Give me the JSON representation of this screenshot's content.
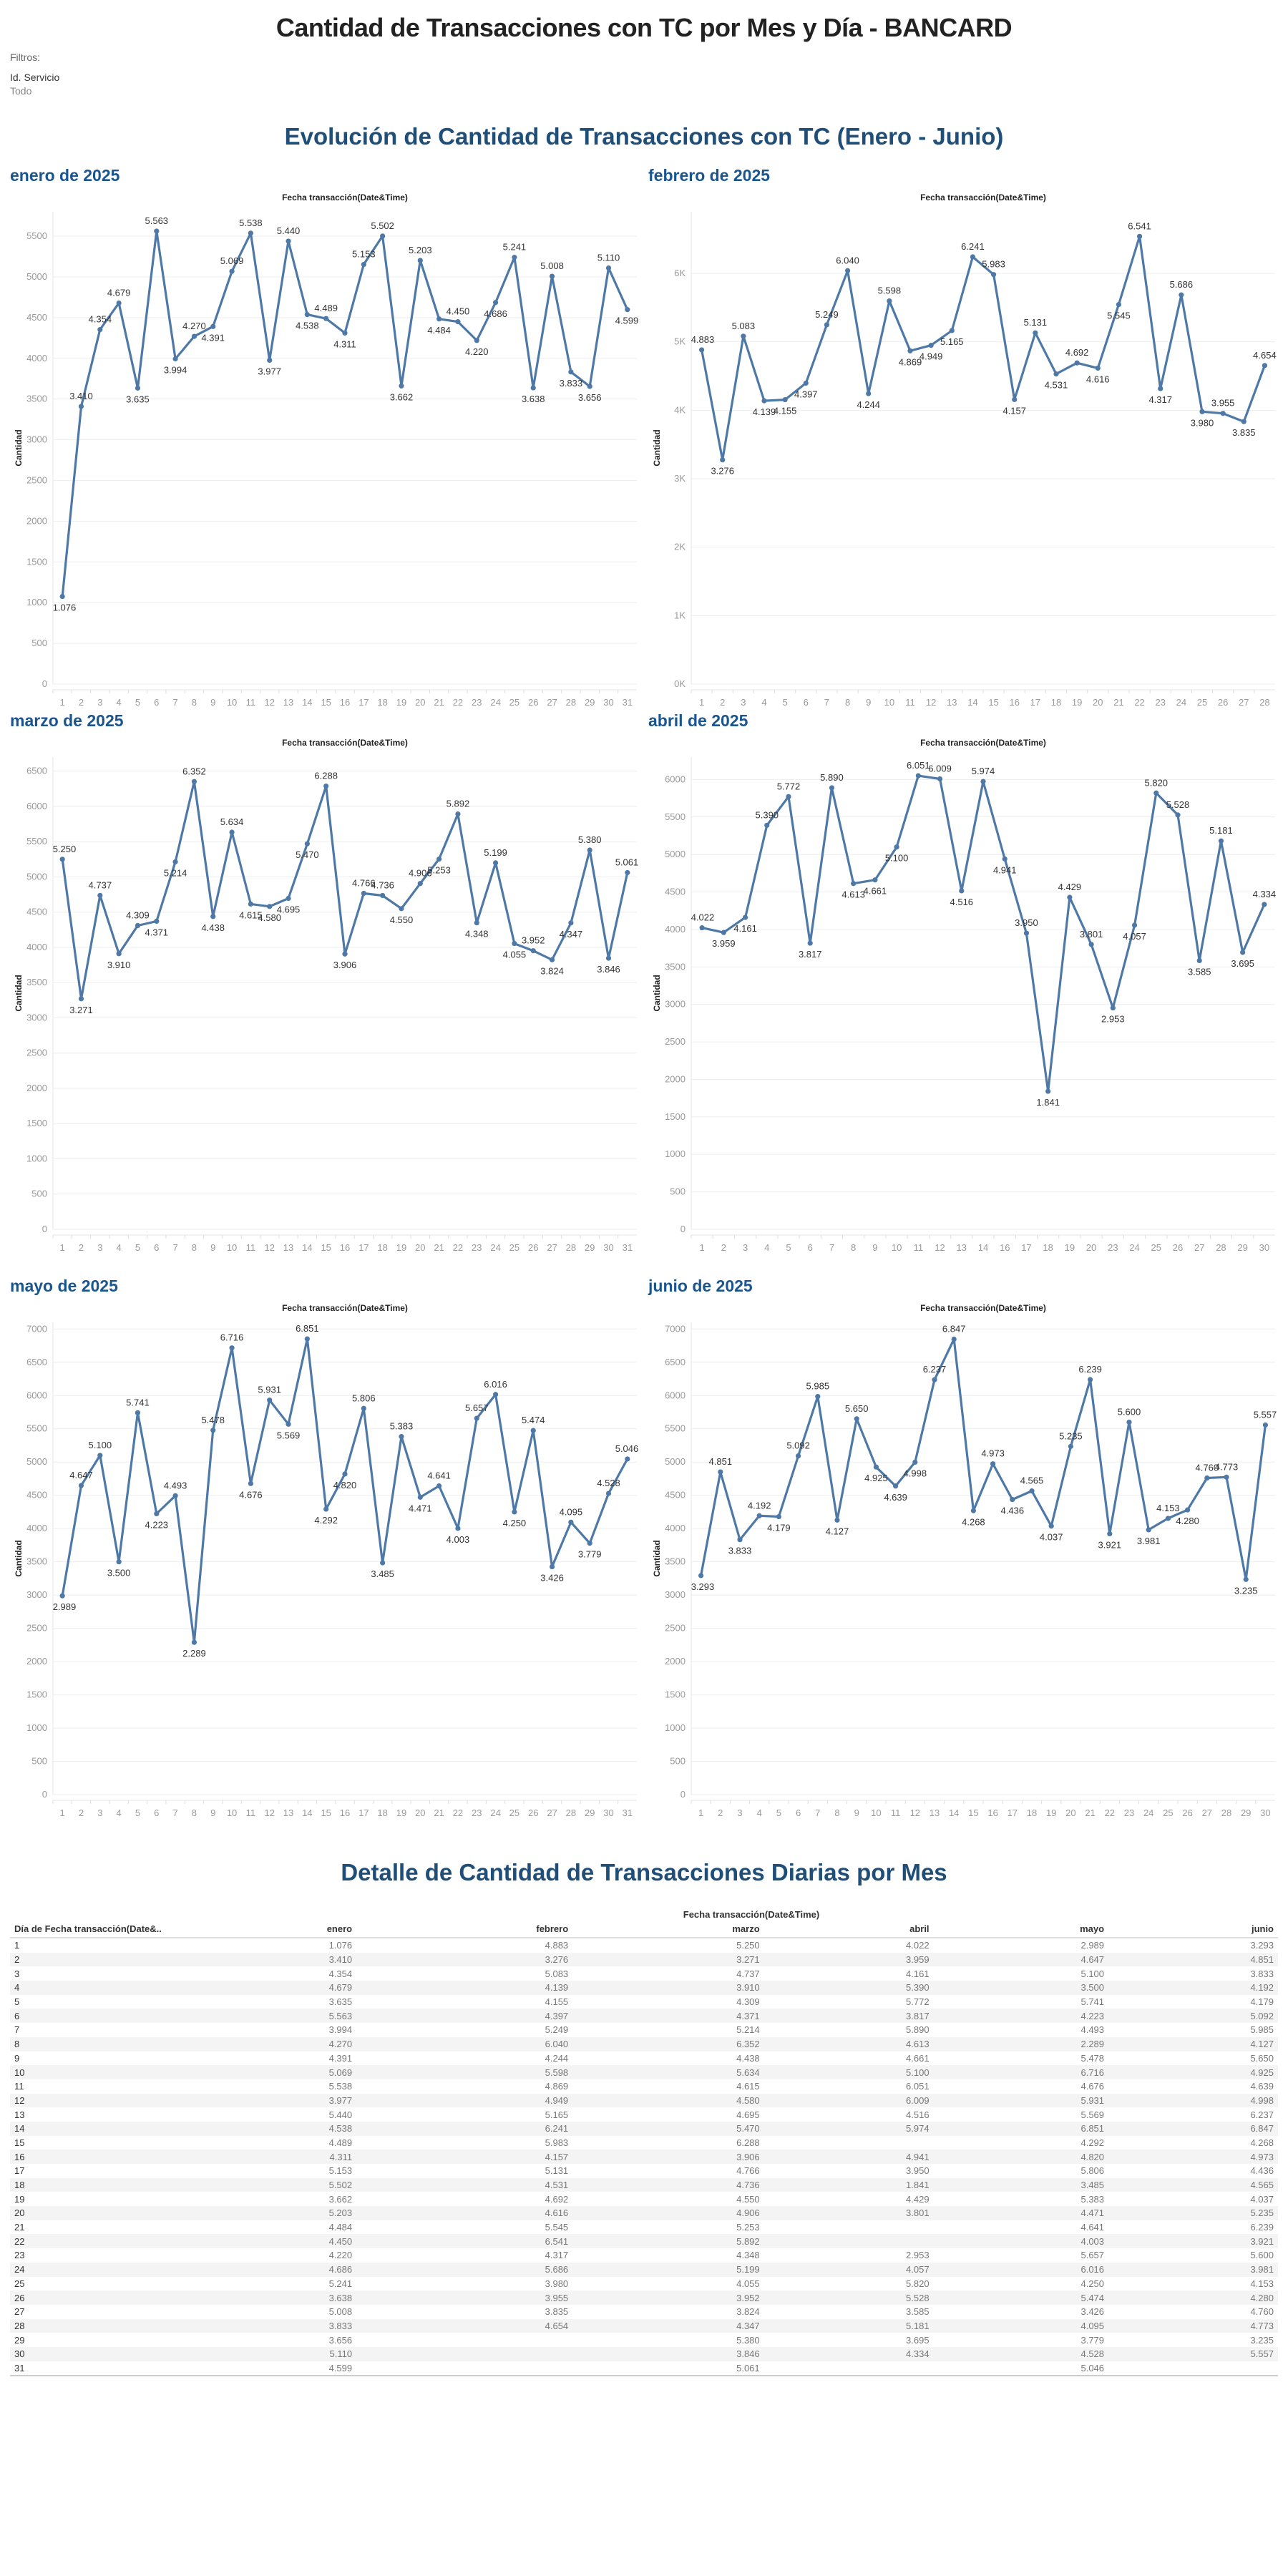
{
  "header": {
    "title": "Cantidad de Transacciones con TC por Mes y Día - BANCARD",
    "filters_label": "Filtros:",
    "filter_name": "Id. Servicio",
    "filter_value": "Todo"
  },
  "charts_section": {
    "title": "Evolución de Cantidad de Transacciones con TC (Enero - Junio)"
  },
  "colors": {
    "line": "#4e79a7",
    "title_blue": "#1f4e79",
    "month_blue": "#1a5590",
    "grid": "#eeeeee"
  },
  "chart_data": [
    {
      "type": "line",
      "title": "enero de 2025",
      "xlabel_top": "Fecha transacción(Date&Time)",
      "ylabel": "Cantidad",
      "ylim": [
        0,
        5800
      ],
      "yticks": [
        0,
        500,
        1000,
        1500,
        2000,
        2500,
        3000,
        3500,
        4000,
        4500,
        5000,
        5500
      ],
      "ytick_labels": [
        "0",
        "500",
        "1000",
        "1500",
        "2000",
        "2500",
        "3000",
        "3500",
        "4000",
        "4500",
        "5000",
        "5500"
      ],
      "grid": true,
      "x": [
        1,
        2,
        3,
        4,
        5,
        6,
        7,
        8,
        9,
        10,
        11,
        12,
        13,
        14,
        15,
        16,
        17,
        18,
        19,
        20,
        21,
        22,
        23,
        24,
        25,
        26,
        27,
        28,
        29,
        30,
        31
      ],
      "values": [
        1076,
        3410,
        4354,
        4679,
        3635,
        5563,
        3994,
        4270,
        4391,
        5069,
        5538,
        3977,
        5440,
        4538,
        4489,
        4311,
        5153,
        5502,
        3662,
        5203,
        4484,
        4450,
        4220,
        4686,
        5241,
        3638,
        5008,
        3833,
        3656,
        5110,
        4599
      ]
    },
    {
      "type": "line",
      "title": "febrero de 2025",
      "xlabel_top": "Fecha transacción(Date&Time)",
      "ylabel": "Cantidad",
      "ylim": [
        0,
        6900
      ],
      "yticks": [
        0,
        1000,
        2000,
        3000,
        4000,
        5000,
        6000
      ],
      "ytick_labels": [
        "0K",
        "1K",
        "2K",
        "3K",
        "4K",
        "5K",
        "6K"
      ],
      "grid": true,
      "x": [
        1,
        2,
        3,
        4,
        5,
        6,
        7,
        8,
        9,
        10,
        11,
        12,
        13,
        14,
        15,
        16,
        17,
        18,
        19,
        20,
        21,
        22,
        23,
        24,
        25,
        26,
        27,
        28
      ],
      "values": [
        4883,
        3276,
        5083,
        4139,
        4155,
        4397,
        5249,
        6040,
        4244,
        5598,
        4869,
        4949,
        5165,
        6241,
        5983,
        4157,
        5131,
        4531,
        4692,
        4616,
        5545,
        6541,
        4317,
        5686,
        3980,
        3955,
        3835,
        4654
      ]
    },
    {
      "type": "line",
      "title": "marzo de 2025",
      "xlabel_top": "Fecha transacción(Date&Time)",
      "ylabel": "Cantidad",
      "ylim": [
        0,
        6700
      ],
      "yticks": [
        0,
        500,
        1000,
        1500,
        2000,
        2500,
        3000,
        3500,
        4000,
        4500,
        5000,
        5500,
        6000,
        6500
      ],
      "ytick_labels": [
        "0",
        "500",
        "1000",
        "1500",
        "2000",
        "2500",
        "3000",
        "3500",
        "4000",
        "4500",
        "5000",
        "5500",
        "6000",
        "6500"
      ],
      "grid": true,
      "x": [
        1,
        2,
        3,
        4,
        5,
        6,
        7,
        8,
        9,
        10,
        11,
        12,
        13,
        14,
        15,
        16,
        17,
        18,
        19,
        20,
        21,
        22,
        23,
        24,
        25,
        26,
        27,
        28,
        29,
        30,
        31
      ],
      "values": [
        5250,
        3271,
        4737,
        3910,
        4309,
        4371,
        5214,
        6352,
        4438,
        5634,
        4615,
        4580,
        4695,
        5470,
        6288,
        3906,
        4766,
        4736,
        4550,
        4906,
        5253,
        5892,
        4348,
        5199,
        4055,
        3952,
        3824,
        4347,
        5380,
        3846,
        5061
      ]
    },
    {
      "type": "line",
      "title": "abril de 2025",
      "xlabel_top": "Fecha transacción(Date&Time)",
      "ylabel": "Cantidad",
      "ylim": [
        0,
        6300
      ],
      "yticks": [
        0,
        500,
        1000,
        1500,
        2000,
        2500,
        3000,
        3500,
        4000,
        4500,
        5000,
        5500,
        6000
      ],
      "ytick_labels": [
        "0",
        "500",
        "1000",
        "1500",
        "2000",
        "2500",
        "3000",
        "3500",
        "4000",
        "4500",
        "5000",
        "5500",
        "6000"
      ],
      "grid": true,
      "x": [
        1,
        2,
        3,
        4,
        5,
        6,
        7,
        8,
        9,
        10,
        11,
        12,
        13,
        14,
        16,
        17,
        18,
        19,
        20,
        23,
        24,
        25,
        26,
        27,
        28,
        29,
        30
      ],
      "values": [
        4022,
        3959,
        4161,
        5390,
        5772,
        3817,
        5890,
        4613,
        4661,
        5100,
        6051,
        6009,
        4516,
        5974,
        4941,
        3950,
        1841,
        4429,
        3801,
        2953,
        4057,
        5820,
        5528,
        3585,
        5181,
        3695,
        4334
      ]
    },
    {
      "type": "line",
      "title": "mayo de 2025",
      "xlabel_top": "Fecha transacción(Date&Time)",
      "ylabel": "Cantidad",
      "ylim": [
        0,
        7100
      ],
      "yticks": [
        0,
        500,
        1000,
        1500,
        2000,
        2500,
        3000,
        3500,
        4000,
        4500,
        5000,
        5500,
        6000,
        6500,
        7000
      ],
      "ytick_labels": [
        "0",
        "500",
        "1000",
        "1500",
        "2000",
        "2500",
        "3000",
        "3500",
        "4000",
        "4500",
        "5000",
        "5500",
        "6000",
        "6500",
        "7000"
      ],
      "grid": true,
      "x": [
        1,
        2,
        3,
        4,
        5,
        6,
        7,
        8,
        9,
        10,
        11,
        12,
        13,
        14,
        15,
        16,
        17,
        18,
        19,
        20,
        21,
        22,
        23,
        24,
        25,
        26,
        27,
        28,
        29,
        30,
        31
      ],
      "values": [
        2989,
        4647,
        5100,
        3500,
        5741,
        4223,
        4493,
        2289,
        5478,
        6716,
        4676,
        5931,
        5569,
        6851,
        4292,
        4820,
        5806,
        3485,
        5383,
        4471,
        4641,
        4003,
        5657,
        6016,
        4250,
        5474,
        3426,
        4095,
        3779,
        4528,
        5046
      ]
    },
    {
      "type": "line",
      "title": "junio de 2025",
      "xlabel_top": "Fecha transacción(Date&Time)",
      "ylabel": "Cantidad",
      "ylim": [
        0,
        7100
      ],
      "yticks": [
        0,
        500,
        1000,
        1500,
        2000,
        2500,
        3000,
        3500,
        4000,
        4500,
        5000,
        5500,
        6000,
        6500,
        7000
      ],
      "ytick_labels": [
        "0",
        "500",
        "1000",
        "1500",
        "2000",
        "2500",
        "3000",
        "3500",
        "4000",
        "4500",
        "5000",
        "5500",
        "6000",
        "6500",
        "7000"
      ],
      "grid": true,
      "x": [
        1,
        2,
        3,
        4,
        5,
        6,
        7,
        8,
        9,
        10,
        11,
        12,
        13,
        14,
        15,
        16,
        17,
        18,
        19,
        20,
        21,
        22,
        23,
        24,
        25,
        26,
        27,
        28,
        29,
        30
      ],
      "values": [
        3293,
        4851,
        3833,
        4192,
        4179,
        5092,
        5985,
        4127,
        5650,
        4925,
        4639,
        4998,
        6237,
        6847,
        4268,
        4973,
        4436,
        4565,
        4037,
        5235,
        6239,
        3921,
        5600,
        3981,
        4153,
        4280,
        4760,
        4773,
        3235,
        5557
      ]
    }
  ],
  "table": {
    "title": "Detalle de Cantidad de Transacciones Diarias por Mes",
    "group_header": "Fecha transacción(Date&Time)",
    "columns": [
      "Día de Fecha transacción(Date&..",
      "enero",
      "febrero",
      "marzo",
      "abril",
      "mayo",
      "junio"
    ],
    "rows": [
      [
        "1",
        "1.076",
        "4.883",
        "5.250",
        "4.022",
        "2.989",
        "3.293"
      ],
      [
        "2",
        "3.410",
        "3.276",
        "3.271",
        "3.959",
        "4.647",
        "4.851"
      ],
      [
        "3",
        "4.354",
        "5.083",
        "4.737",
        "4.161",
        "5.100",
        "3.833"
      ],
      [
        "4",
        "4.679",
        "4.139",
        "3.910",
        "5.390",
        "3.500",
        "4.192"
      ],
      [
        "5",
        "3.635",
        "4.155",
        "4.309",
        "5.772",
        "5.741",
        "4.179"
      ],
      [
        "6",
        "5.563",
        "4.397",
        "4.371",
        "3.817",
        "4.223",
        "5.092"
      ],
      [
        "7",
        "3.994",
        "5.249",
        "5.214",
        "5.890",
        "4.493",
        "5.985"
      ],
      [
        "8",
        "4.270",
        "6.040",
        "6.352",
        "4.613",
        "2.289",
        "4.127"
      ],
      [
        "9",
        "4.391",
        "4.244",
        "4.438",
        "4.661",
        "5.478",
        "5.650"
      ],
      [
        "10",
        "5.069",
        "5.598",
        "5.634",
        "5.100",
        "6.716",
        "4.925"
      ],
      [
        "11",
        "5.538",
        "4.869",
        "4.615",
        "6.051",
        "4.676",
        "4.639"
      ],
      [
        "12",
        "3.977",
        "4.949",
        "4.580",
        "6.009",
        "5.931",
        "4.998"
      ],
      [
        "13",
        "5.440",
        "5.165",
        "4.695",
        "4.516",
        "5.569",
        "6.237"
      ],
      [
        "14",
        "4.538",
        "6.241",
        "5.470",
        "5.974",
        "6.851",
        "6.847"
      ],
      [
        "15",
        "4.489",
        "5.983",
        "6.288",
        "",
        "4.292",
        "4.268"
      ],
      [
        "16",
        "4.311",
        "4.157",
        "3.906",
        "4.941",
        "4.820",
        "4.973"
      ],
      [
        "17",
        "5.153",
        "5.131",
        "4.766",
        "3.950",
        "5.806",
        "4.436"
      ],
      [
        "18",
        "5.502",
        "4.531",
        "4.736",
        "1.841",
        "3.485",
        "4.565"
      ],
      [
        "19",
        "3.662",
        "4.692",
        "4.550",
        "4.429",
        "5.383",
        "4.037"
      ],
      [
        "20",
        "5.203",
        "4.616",
        "4.906",
        "3.801",
        "4.471",
        "5.235"
      ],
      [
        "21",
        "4.484",
        "5.545",
        "5.253",
        "",
        "4.641",
        "6.239"
      ],
      [
        "22",
        "4.450",
        "6.541",
        "5.892",
        "",
        "4.003",
        "3.921"
      ],
      [
        "23",
        "4.220",
        "4.317",
        "4.348",
        "2.953",
        "5.657",
        "5.600"
      ],
      [
        "24",
        "4.686",
        "5.686",
        "5.199",
        "4.057",
        "6.016",
        "3.981"
      ],
      [
        "25",
        "5.241",
        "3.980",
        "4.055",
        "5.820",
        "4.250",
        "4.153"
      ],
      [
        "26",
        "3.638",
        "3.955",
        "3.952",
        "5.528",
        "5.474",
        "4.280"
      ],
      [
        "27",
        "5.008",
        "3.835",
        "3.824",
        "3.585",
        "3.426",
        "4.760"
      ],
      [
        "28",
        "3.833",
        "4.654",
        "4.347",
        "5.181",
        "4.095",
        "4.773"
      ],
      [
        "29",
        "3.656",
        "",
        "5.380",
        "3.695",
        "3.779",
        "3.235"
      ],
      [
        "30",
        "5.110",
        "",
        "3.846",
        "4.334",
        "4.528",
        "5.557"
      ],
      [
        "31",
        "4.599",
        "",
        "5.061",
        "",
        "5.046",
        ""
      ]
    ]
  }
}
